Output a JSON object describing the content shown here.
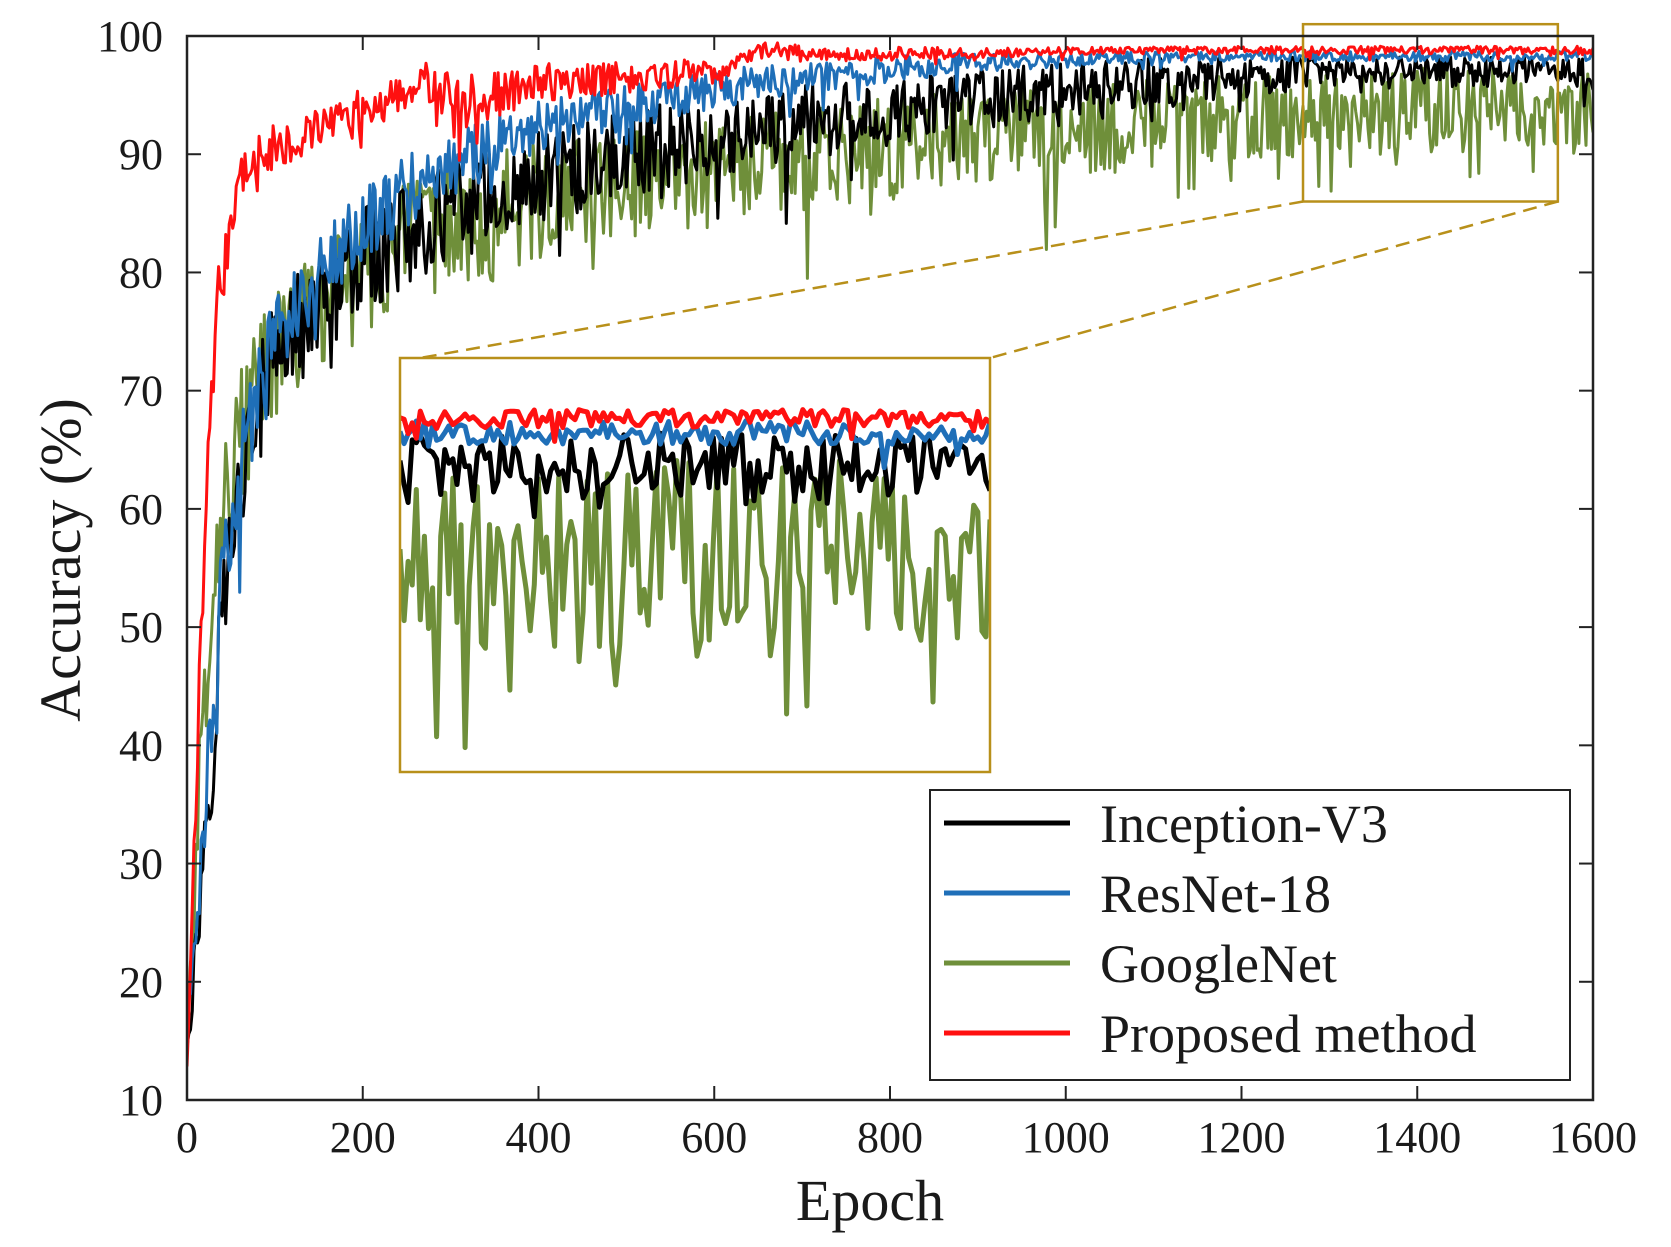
{
  "chart_data": {
    "type": "line",
    "title": "",
    "xlabel": "Epoch",
    "ylabel": "Accuracy (%)",
    "xlim": [
      0,
      1600
    ],
    "ylim": [
      10,
      100
    ],
    "xticks": [
      0,
      200,
      400,
      600,
      800,
      1000,
      1200,
      1400,
      1600
    ],
    "yticks": [
      10,
      20,
      30,
      40,
      50,
      60,
      70,
      80,
      90,
      100
    ],
    "xtick_labels": [
      "0",
      "200",
      "400",
      "600",
      "800",
      "1000",
      "1200",
      "1400",
      "1600"
    ],
    "ytick_labels": [
      "10",
      "20",
      "30",
      "40",
      "50",
      "60",
      "70",
      "80",
      "90",
      "100"
    ],
    "grid": false,
    "legend_position": "bottom-right",
    "series": [
      {
        "name": "Inception-V3",
        "color": "#000000",
        "x": [
          0,
          10,
          20,
          30,
          40,
          60,
          80,
          100,
          150,
          200,
          250,
          300,
          400,
          500,
          600,
          700,
          800,
          900,
          1000,
          1100,
          1200,
          1300,
          1400,
          1500,
          1600
        ],
        "values": [
          15,
          22,
          33,
          40,
          52,
          62,
          69,
          73,
          78,
          81,
          83,
          85,
          88,
          90,
          91.5,
          92.5,
          93.5,
          94.5,
          95.5,
          96,
          96.5,
          97,
          97,
          97,
          97
        ],
        "noise": [
          1,
          3,
          4,
          4,
          4,
          4,
          4,
          4,
          4,
          4,
          4,
          4,
          3.5,
          3.5,
          3,
          3,
          2.5,
          2.5,
          2,
          2,
          1.5,
          1.2,
          1.2,
          1.2,
          1.2
        ]
      },
      {
        "name": "ResNet-18",
        "color": "#1f6fb8",
        "x": [
          0,
          10,
          20,
          30,
          40,
          60,
          80,
          100,
          150,
          200,
          250,
          300,
          400,
          500,
          600,
          700,
          800,
          900,
          1000,
          1100,
          1200,
          1300,
          1400,
          1500,
          1600
        ],
        "values": [
          16,
          25,
          35,
          45,
          53,
          63,
          70,
          75,
          80,
          84,
          87,
          89,
          92.5,
          94,
          95.5,
          96.5,
          97.2,
          97.8,
          98,
          98.2,
          98.3,
          98.3,
          98.3,
          98.3,
          98.3
        ],
        "noise": [
          1,
          3,
          4,
          4,
          4,
          4,
          3.5,
          3.5,
          3,
          3,
          3,
          2.5,
          2,
          1.8,
          1.5,
          1.2,
          1,
          0.8,
          0.6,
          0.4,
          0.4,
          0.4,
          0.4,
          0.4,
          0.4
        ]
      },
      {
        "name": "GoogleNet",
        "color": "#6f8f3a",
        "x": [
          0,
          10,
          20,
          30,
          40,
          60,
          80,
          100,
          150,
          200,
          250,
          300,
          400,
          500,
          600,
          700,
          800,
          900,
          1000,
          1100,
          1200,
          1300,
          1400,
          1500,
          1600
        ],
        "values": [
          15,
          30,
          45,
          55,
          60,
          66,
          70,
          73,
          77,
          80,
          82,
          84,
          86,
          87.5,
          88.5,
          89.5,
          90.5,
          91.5,
          92,
          92.5,
          93,
          93.5,
          94,
          94,
          94
        ],
        "noise": [
          1,
          4,
          5,
          5,
          5,
          5,
          5,
          5,
          5,
          5,
          5,
          5,
          4.5,
          4.5,
          4,
          4,
          4,
          3.5,
          3.5,
          3.5,
          3.5,
          3,
          3,
          3,
          3
        ]
      },
      {
        "name": "Proposed method",
        "color": "#ff1010",
        "x": [
          0,
          10,
          20,
          30,
          40,
          50,
          60,
          80,
          100,
          150,
          200,
          250,
          270,
          300,
          350,
          400,
          500,
          600,
          650,
          700,
          800,
          900,
          1000,
          1200,
          1400,
          1600
        ],
        "values": [
          13,
          35,
          58,
          73,
          81,
          85,
          88,
          90,
          91,
          92,
          93.5,
          95.5,
          96.5,
          94,
          95,
          96,
          96.5,
          97,
          99,
          98.5,
          98.5,
          98.6,
          98.7,
          98.8,
          98.8,
          98.8
        ],
        "noise": [
          1,
          3,
          3,
          3,
          2.5,
          2,
          2,
          2,
          2,
          2,
          1.8,
          1.5,
          1.2,
          2.5,
          1.8,
          1.5,
          1.2,
          1,
          0.8,
          0.6,
          0.5,
          0.4,
          0.3,
          0.3,
          0.3,
          0.3
        ]
      }
    ],
    "inset": {
      "description_source": "zoom",
      "zoom_xlim": [
        1270,
        1560
      ],
      "zoom_ylim": [
        86,
        101
      ],
      "border_color": "#b8901a"
    }
  }
}
